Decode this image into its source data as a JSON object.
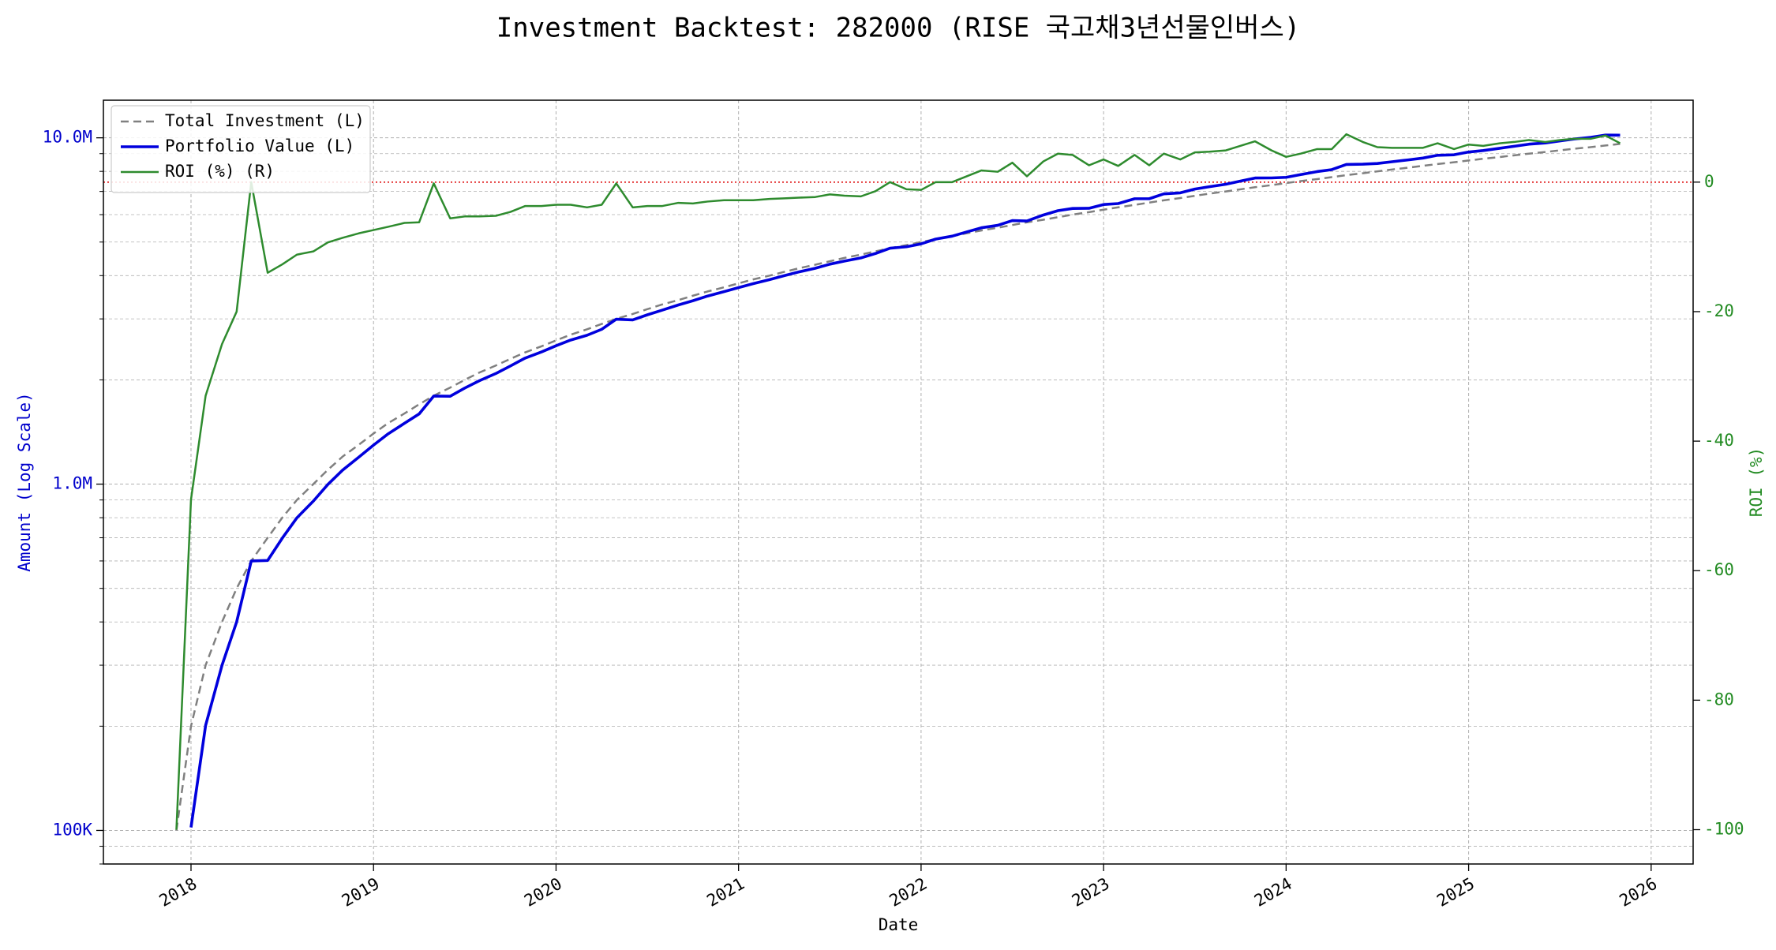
{
  "chart_data": {
    "type": "line",
    "title": "Investment Backtest: 282000 (RISE 국고채3년선물인버스)",
    "xlabel": "Date",
    "ylabel": "Amount (Log Scale)",
    "y2label": "ROI (%)",
    "ylabel_color": "#0000cc",
    "y2label_color": "#228b22",
    "log_y": true,
    "grid": true,
    "legend": "upper left",
    "xlim": [
      2017.52,
      2026.23
    ],
    "xticks": [
      2018,
      2019,
      2020,
      2021,
      2022,
      2023,
      2024,
      2025,
      2026
    ],
    "ylim": [
      80000,
      12840000
    ],
    "yticks": [
      {
        "value": 100000,
        "label": "100K"
      },
      {
        "value": 1000000,
        "label": "1.0M"
      },
      {
        "value": 10000000,
        "label": "10.0M"
      }
    ],
    "yminorticks": [
      80000,
      90000,
      200000,
      300000,
      400000,
      500000,
      600000,
      700000,
      800000,
      900000,
      2000000,
      3000000,
      4000000,
      5000000,
      6000000,
      7000000,
      8000000,
      9000000
    ],
    "y2lim": [
      -105.3,
      12.65
    ],
    "y2ticks": [
      -100,
      -80,
      -60,
      -40,
      -20,
      0
    ],
    "y2_refline": {
      "value": 0,
      "color": "#dd0000"
    },
    "x": [
      2017.92,
      2018.0,
      2018.08,
      2018.17,
      2018.25,
      2018.33,
      2018.42,
      2018.5,
      2018.58,
      2018.67,
      2018.75,
      2018.83,
      2018.92,
      2019.0,
      2019.08,
      2019.17,
      2019.25,
      2019.33,
      2019.42,
      2019.5,
      2019.58,
      2019.67,
      2019.75,
      2019.83,
      2019.92,
      2020.0,
      2020.08,
      2020.17,
      2020.25,
      2020.33,
      2020.42,
      2020.5,
      2020.58,
      2020.67,
      2020.75,
      2020.83,
      2020.92,
      2021.0,
      2021.08,
      2021.17,
      2021.25,
      2021.33,
      2021.42,
      2021.5,
      2021.58,
      2021.67,
      2021.75,
      2021.83,
      2021.92,
      2022.0,
      2022.08,
      2022.17,
      2022.25,
      2022.33,
      2022.42,
      2022.5,
      2022.58,
      2022.67,
      2022.75,
      2022.83,
      2022.92,
      2023.0,
      2023.08,
      2023.17,
      2023.25,
      2023.33,
      2023.42,
      2023.5,
      2023.58,
      2023.67,
      2023.75,
      2023.83,
      2023.92,
      2024.0,
      2024.08,
      2024.17,
      2024.25,
      2024.33,
      2024.42,
      2024.5,
      2024.58,
      2024.67,
      2024.75,
      2024.83,
      2024.92,
      2025.0,
      2025.08,
      2025.17,
      2025.25,
      2025.33,
      2025.42,
      2025.5,
      2025.58,
      2025.67,
      2025.75,
      2025.83
    ],
    "series": [
      {
        "name": "Total Investment (L)",
        "color": "#808080",
        "dashed": true,
        "width": 2.5,
        "axis": "y",
        "values": [
          100000,
          200000,
          300000,
          400000,
          500000,
          600000,
          700000,
          800000,
          900000,
          1000000,
          1100000,
          1200000,
          1300000,
          1400000,
          1500000,
          1600000,
          1700000,
          1800000,
          1900000,
          2000000,
          2100000,
          2200000,
          2300000,
          2400000,
          2500000,
          2600000,
          2700000,
          2800000,
          2900000,
          3000000,
          3100000,
          3200000,
          3300000,
          3400000,
          3500000,
          3600000,
          3700000,
          3800000,
          3900000,
          4000000,
          4100000,
          4200000,
          4300000,
          4400000,
          4500000,
          4600000,
          4700000,
          4800000,
          4900000,
          5000000,
          5100000,
          5200000,
          5300000,
          5400000,
          5500000,
          5600000,
          5700000,
          5800000,
          5900000,
          6000000,
          6100000,
          6200000,
          6300000,
          6400000,
          6500000,
          6600000,
          6700000,
          6800000,
          6900000,
          7000000,
          7100000,
          7200000,
          7300000,
          7400000,
          7500000,
          7600000,
          7700000,
          7800000,
          7900000,
          8000000,
          8100000,
          8200000,
          8300000,
          8400000,
          8500000,
          8600000,
          8700000,
          8800000,
          8900000,
          9000000,
          9100000,
          9200000,
          9300000,
          9400000,
          9500000,
          9600000
        ]
      },
      {
        "name": "Portfolio Value (L)",
        "color": "#0000dd",
        "dashed": false,
        "width": 3.6,
        "axis": "y",
        "values": [
          null,
          102000,
          201000,
          300000,
          400000,
          600000,
          602000,
          698000,
          799000,
          893000,
          998000,
          1097000,
          1197000,
          1296000,
          1397000,
          1499000,
          1595000,
          1796000,
          1794000,
          1894000,
          1989000,
          2086000,
          2194000,
          2311000,
          2408000,
          2509000,
          2606000,
          2691000,
          2799000,
          2994000,
          2979000,
          3082000,
          3178000,
          3291000,
          3385000,
          3492000,
          3596000,
          3694000,
          3791000,
          3896000,
          3998000,
          4099000,
          4201000,
          4316000,
          4406000,
          4499000,
          4634000,
          4800000,
          4846000,
          4940000,
          5100000,
          5200000,
          5348000,
          5497000,
          5588000,
          5768000,
          5751000,
          5986000,
          6160000,
          6252000,
          6259000,
          6417000,
          6458000,
          6669000,
          6669000,
          6890000,
          6935000,
          7113000,
          7224000,
          7343000,
          7498000,
          7654000,
          7658000,
          7689000,
          7830000,
          7988000,
          8093000,
          8377000,
          8390000,
          8432000,
          8529000,
          8635000,
          8740000,
          8904000,
          8934000,
          9099000,
          9187000,
          9328000,
          9452000,
          9585000,
          9664000,
          9798000,
          9923000,
          10030000,
          10184000,
          10176000
        ]
      },
      {
        "name": "ROI (%) (R)",
        "color": "#2e8b2e",
        "dashed": false,
        "width": 2.5,
        "axis": "y2",
        "values": [
          -100,
          -49,
          -33,
          -25,
          -20,
          0,
          -14,
          -12.7,
          -11.2,
          -10.7,
          -9.3,
          -8.6,
          -7.9,
          -7.4,
          -6.9,
          -6.3,
          -6.2,
          -0.2,
          -5.6,
          -5.3,
          -5.3,
          -5.2,
          -4.6,
          -3.7,
          -3.7,
          -3.5,
          -3.5,
          -3.9,
          -3.5,
          -0.2,
          -3.9,
          -3.7,
          -3.7,
          -3.2,
          -3.3,
          -3.0,
          -2.8,
          -2.8,
          -2.8,
          -2.6,
          -2.5,
          -2.4,
          -2.3,
          -1.9,
          -2.1,
          -2.2,
          -1.4,
          0,
          -1.1,
          -1.2,
          0,
          0,
          0.9,
          1.8,
          1.6,
          3.0,
          0.9,
          3.2,
          4.4,
          4.2,
          2.6,
          3.5,
          2.5,
          4.2,
          2.6,
          4.4,
          3.5,
          4.6,
          4.7,
          4.9,
          5.6,
          6.3,
          4.9,
          3.9,
          4.4,
          5.1,
          5.1,
          7.4,
          6.2,
          5.4,
          5.3,
          5.3,
          5.3,
          6.0,
          5.1,
          5.8,
          5.6,
          6.0,
          6.2,
          6.5,
          6.2,
          6.5,
          6.7,
          6.7,
          7.2,
          6.0
        ]
      }
    ]
  }
}
